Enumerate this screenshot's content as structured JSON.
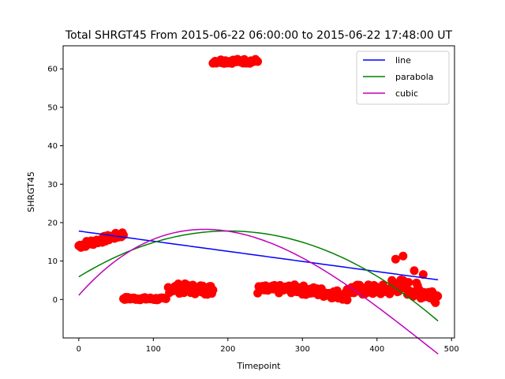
{
  "chart_data": {
    "type": "scatter",
    "title": "Total SHRGT45 From 2015-06-22 06:00:00 to 2015-06-22 17:48:00 UT",
    "xlabel": "Timepoint",
    "ylabel": "SHRGT45",
    "xlim": [
      -21,
      504
    ],
    "ylim": [
      -10,
      66
    ],
    "xticks": [
      0,
      100,
      200,
      300,
      400,
      500
    ],
    "yticks": [
      0,
      10,
      20,
      30,
      40,
      50,
      60
    ],
    "grid": false,
    "legend_position": "top-right",
    "points_color": "#ff0000",
    "scatter_segments": [
      {
        "x_start": 0,
        "x_end": 60,
        "y_start": 14.0,
        "y_end": 17.0,
        "jitter": 0.8,
        "step": 1.5
      },
      {
        "x_start": 60,
        "x_end": 118,
        "y_start": 0.3,
        "y_end": 0.1,
        "jitter": 0.35,
        "step": 1.5
      },
      {
        "x_start": 120,
        "x_end": 180,
        "y_start": 3.0,
        "y_end": 2.5,
        "jitter": 1.3,
        "step": 1.5
      },
      {
        "x_start": 180,
        "x_end": 240,
        "y_start": 62.0,
        "y_end": 62.0,
        "jitter": 0.6,
        "step": 1.5
      },
      {
        "x_start": 240,
        "x_end": 300,
        "y_start": 2.5,
        "y_end": 2.8,
        "jitter": 1.1,
        "step": 1.5
      },
      {
        "x_start": 300,
        "x_end": 360,
        "y_start": 2.5,
        "y_end": 1.0,
        "jitter": 1.2,
        "step": 1.5
      },
      {
        "x_start": 360,
        "x_end": 420,
        "y_start": 2.5,
        "y_end": 2.5,
        "jitter": 1.4,
        "step": 1.5
      },
      {
        "x_start": 420,
        "x_end": 482,
        "y_start": 4.0,
        "y_end": 1.0,
        "jitter": 2.0,
        "step": 1.5
      }
    ],
    "scatter_outliers": [
      {
        "x": 425,
        "y": 10.5
      },
      {
        "x": 435,
        "y": 11.3
      },
      {
        "x": 450,
        "y": 7.5
      },
      {
        "x": 462,
        "y": 6.5
      }
    ],
    "series": [
      {
        "name": "line",
        "color": "#0000ff",
        "kind": "polynomial",
        "coefficients": [
          17.8,
          -0.0263
        ]
      },
      {
        "name": "parabola",
        "color": "#008000",
        "kind": "polynomial",
        "coefficients": [
          5.9,
          0.1188,
          -0.000296
        ]
      },
      {
        "name": "cubic",
        "color": "#bf00bf",
        "kind": "polynomial",
        "coefficients": [
          1.1,
          0.219,
          -0.00079,
          5.6e-07
        ]
      }
    ],
    "fit_x_range": [
      0,
      482
    ]
  }
}
